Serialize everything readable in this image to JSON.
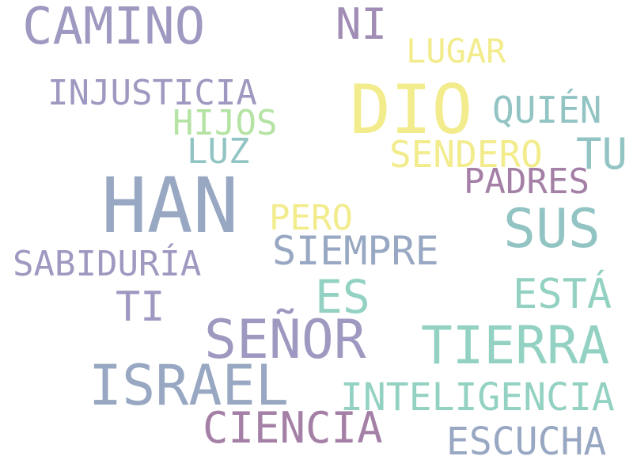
{
  "words": [
    {
      "text": "CAMINO"
    },
    {
      "text": "NI"
    },
    {
      "text": "LUGAR"
    },
    {
      "text": "INJUSTICIA"
    },
    {
      "text": "DIO"
    },
    {
      "text": "QUIÉN"
    },
    {
      "text": "HIJOS"
    },
    {
      "text": "LUZ"
    },
    {
      "text": "SENDERO"
    },
    {
      "text": "TU"
    },
    {
      "text": "PADRES"
    },
    {
      "text": "HAN"
    },
    {
      "text": "PERO"
    },
    {
      "text": "SUS"
    },
    {
      "text": "SIEMPRE"
    },
    {
      "text": "SABIDURÍA"
    },
    {
      "text": "ES"
    },
    {
      "text": "ESTÁ"
    },
    {
      "text": "TI"
    },
    {
      "text": "SEÑOR"
    },
    {
      "text": "TIERRA"
    },
    {
      "text": "ISRAEL"
    },
    {
      "text": "INTELIGENCIA"
    },
    {
      "text": "CIENCIA"
    },
    {
      "text": "ESCUCHA"
    }
  ]
}
